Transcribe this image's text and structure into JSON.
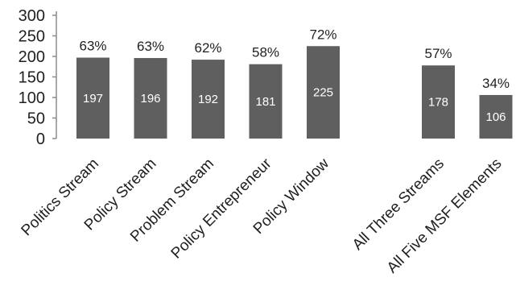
{
  "chart_data": {
    "type": "bar",
    "categories": [
      "Politics Stream",
      "Policy Stream",
      "Problem Stream",
      "Policy Entrepreneur",
      "Policy Window",
      "",
      "All Three Streams",
      "All Five MSF Elements"
    ],
    "values": [
      197,
      196,
      192,
      181,
      225,
      null,
      178,
      106
    ],
    "value_labels": [
      "197",
      "196",
      "192",
      "181",
      "225",
      "",
      "178",
      "106"
    ],
    "percent_labels": [
      "63%",
      "63%",
      "62%",
      "58%",
      "72%",
      "",
      "57%",
      "34%"
    ],
    "title": "",
    "xlabel": "",
    "ylabel": "",
    "ylim": [
      0,
      300
    ],
    "yticks": [
      0,
      50,
      100,
      150,
      200,
      250,
      300
    ],
    "grid": false,
    "legend": "none",
    "bar_color": "#5f5f5f"
  }
}
